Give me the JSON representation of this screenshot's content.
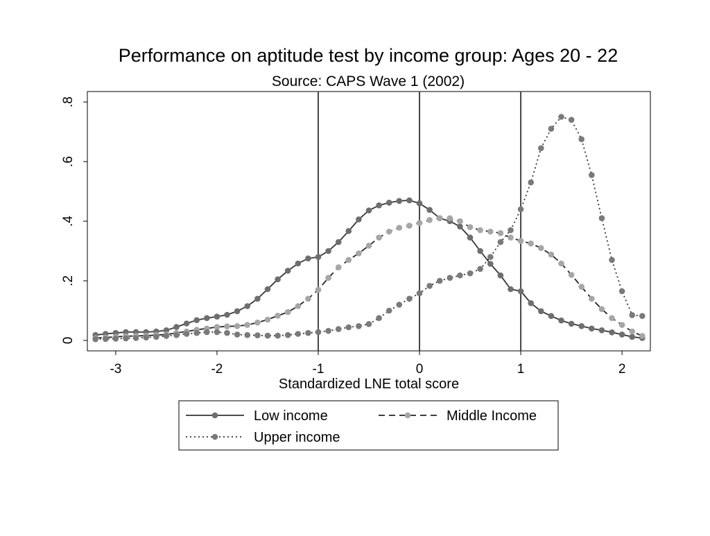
{
  "chart_data": {
    "type": "line",
    "title": "Performance on aptitude test by income group: Ages 20 - 22",
    "subtitle": "Source: CAPS Wave 1 (2002)",
    "xlabel": "Standardized LNE total score",
    "ylabel": "",
    "xlim": [
      -3.28,
      2.28
    ],
    "ylim": [
      -0.035,
      0.835
    ],
    "x_ticks": [
      {
        "value": -3,
        "label": "-3"
      },
      {
        "value": -2,
        "label": "-2"
      },
      {
        "value": -1,
        "label": "-1"
      },
      {
        "value": 0,
        "label": "0"
      },
      {
        "value": 1,
        "label": "1"
      },
      {
        "value": 2,
        "label": "2"
      }
    ],
    "y_ticks": [
      {
        "value": 0,
        "label": "0"
      },
      {
        "value": 0.2,
        "label": ".2"
      },
      {
        "value": 0.4,
        "label": ".4"
      },
      {
        "value": 0.6,
        "label": ".6"
      },
      {
        "value": 0.8,
        "label": ".8"
      }
    ],
    "reference_lines_x": [
      -1,
      0,
      1
    ],
    "grid": false,
    "legend_position": "bottom",
    "series": [
      {
        "name": "Low income",
        "line_style": "solid",
        "line_color": "#333333",
        "marker_color": "#6e6e6e",
        "points": [
          [
            -3.2,
            0.018
          ],
          [
            -3.1,
            0.022
          ],
          [
            -3.0,
            0.025
          ],
          [
            -2.9,
            0.028
          ],
          [
            -2.8,
            0.028
          ],
          [
            -2.7,
            0.028
          ],
          [
            -2.6,
            0.03
          ],
          [
            -2.5,
            0.034
          ],
          [
            -2.4,
            0.045
          ],
          [
            -2.3,
            0.057
          ],
          [
            -2.2,
            0.068
          ],
          [
            -2.1,
            0.075
          ],
          [
            -2.0,
            0.08
          ],
          [
            -1.9,
            0.086
          ],
          [
            -1.8,
            0.098
          ],
          [
            -1.7,
            0.115
          ],
          [
            -1.6,
            0.14
          ],
          [
            -1.5,
            0.172
          ],
          [
            -1.4,
            0.205
          ],
          [
            -1.3,
            0.234
          ],
          [
            -1.2,
            0.258
          ],
          [
            -1.1,
            0.275
          ],
          [
            -1.0,
            0.28
          ],
          [
            -0.9,
            0.3
          ],
          [
            -0.8,
            0.33
          ],
          [
            -0.7,
            0.367
          ],
          [
            -0.6,
            0.406
          ],
          [
            -0.5,
            0.436
          ],
          [
            -0.4,
            0.453
          ],
          [
            -0.3,
            0.462
          ],
          [
            -0.2,
            0.468
          ],
          [
            -0.1,
            0.47
          ],
          [
            0.0,
            0.46
          ],
          [
            0.1,
            0.438
          ],
          [
            0.2,
            0.41
          ],
          [
            0.3,
            0.4
          ],
          [
            0.4,
            0.382
          ],
          [
            0.5,
            0.345
          ],
          [
            0.6,
            0.3
          ],
          [
            0.7,
            0.257
          ],
          [
            0.8,
            0.218
          ],
          [
            0.9,
            0.172
          ],
          [
            1.0,
            0.165
          ],
          [
            1.1,
            0.125
          ],
          [
            1.2,
            0.098
          ],
          [
            1.3,
            0.082
          ],
          [
            1.4,
            0.067
          ],
          [
            1.5,
            0.056
          ],
          [
            1.6,
            0.048
          ],
          [
            1.7,
            0.04
          ],
          [
            1.8,
            0.034
          ],
          [
            1.9,
            0.027
          ],
          [
            2.0,
            0.02
          ],
          [
            2.1,
            0.012
          ],
          [
            2.2,
            0.008
          ]
        ]
      },
      {
        "name": "Middle Income",
        "line_style": "dashed",
        "line_color": "#222222",
        "marker_color": "#a6a6a6",
        "points": [
          [
            -3.2,
            0.008
          ],
          [
            -3.1,
            0.01
          ],
          [
            -3.0,
            0.012
          ],
          [
            -2.9,
            0.014
          ],
          [
            -2.8,
            0.015
          ],
          [
            -2.7,
            0.016
          ],
          [
            -2.6,
            0.018
          ],
          [
            -2.5,
            0.02
          ],
          [
            -2.4,
            0.025
          ],
          [
            -2.3,
            0.03
          ],
          [
            -2.2,
            0.036
          ],
          [
            -2.1,
            0.04
          ],
          [
            -2.0,
            0.045
          ],
          [
            -1.9,
            0.047
          ],
          [
            -1.8,
            0.048
          ],
          [
            -1.7,
            0.052
          ],
          [
            -1.6,
            0.06
          ],
          [
            -1.5,
            0.07
          ],
          [
            -1.4,
            0.083
          ],
          [
            -1.3,
            0.095
          ],
          [
            -1.2,
            0.115
          ],
          [
            -1.1,
            0.14
          ],
          [
            -1.0,
            0.17
          ],
          [
            -0.9,
            0.21
          ],
          [
            -0.8,
            0.245
          ],
          [
            -0.7,
            0.27
          ],
          [
            -0.6,
            0.292
          ],
          [
            -0.5,
            0.318
          ],
          [
            -0.4,
            0.345
          ],
          [
            -0.3,
            0.365
          ],
          [
            -0.2,
            0.378
          ],
          [
            -0.1,
            0.385
          ],
          [
            0.0,
            0.394
          ],
          [
            0.1,
            0.404
          ],
          [
            0.2,
            0.41
          ],
          [
            0.3,
            0.41
          ],
          [
            0.4,
            0.4
          ],
          [
            0.5,
            0.38
          ],
          [
            0.6,
            0.37
          ],
          [
            0.7,
            0.365
          ],
          [
            0.8,
            0.36
          ],
          [
            0.9,
            0.345
          ],
          [
            1.0,
            0.334
          ],
          [
            1.1,
            0.325
          ],
          [
            1.2,
            0.31
          ],
          [
            1.3,
            0.288
          ],
          [
            1.4,
            0.258
          ],
          [
            1.5,
            0.22
          ],
          [
            1.6,
            0.18
          ],
          [
            1.7,
            0.14
          ],
          [
            1.8,
            0.105
          ],
          [
            1.9,
            0.075
          ],
          [
            2.0,
            0.052
          ],
          [
            2.1,
            0.03
          ],
          [
            2.2,
            0.015
          ]
        ]
      },
      {
        "name": "Upper income",
        "line_style": "dotted",
        "line_color": "#333333",
        "marker_color": "#7a7a7a",
        "points": [
          [
            -3.2,
            0.004
          ],
          [
            -3.1,
            0.005
          ],
          [
            -3.0,
            0.006
          ],
          [
            -2.9,
            0.007
          ],
          [
            -2.8,
            0.008
          ],
          [
            -2.7,
            0.01
          ],
          [
            -2.6,
            0.012
          ],
          [
            -2.5,
            0.015
          ],
          [
            -2.4,
            0.018
          ],
          [
            -2.3,
            0.022
          ],
          [
            -2.2,
            0.025
          ],
          [
            -2.1,
            0.028
          ],
          [
            -2.0,
            0.028
          ],
          [
            -1.9,
            0.025
          ],
          [
            -1.8,
            0.02
          ],
          [
            -1.7,
            0.018
          ],
          [
            -1.6,
            0.017
          ],
          [
            -1.5,
            0.016
          ],
          [
            -1.4,
            0.016
          ],
          [
            -1.3,
            0.018
          ],
          [
            -1.2,
            0.022
          ],
          [
            -1.1,
            0.025
          ],
          [
            -1.0,
            0.028
          ],
          [
            -0.9,
            0.032
          ],
          [
            -0.8,
            0.038
          ],
          [
            -0.7,
            0.044
          ],
          [
            -0.6,
            0.048
          ],
          [
            -0.5,
            0.055
          ],
          [
            -0.4,
            0.075
          ],
          [
            -0.3,
            0.1
          ],
          [
            -0.2,
            0.12
          ],
          [
            -0.1,
            0.14
          ],
          [
            0.0,
            0.158
          ],
          [
            0.1,
            0.183
          ],
          [
            0.2,
            0.2
          ],
          [
            0.3,
            0.21
          ],
          [
            0.4,
            0.218
          ],
          [
            0.5,
            0.225
          ],
          [
            0.6,
            0.24
          ],
          [
            0.7,
            0.28
          ],
          [
            0.8,
            0.33
          ],
          [
            0.9,
            0.37
          ],
          [
            1.0,
            0.44
          ],
          [
            1.1,
            0.53
          ],
          [
            1.2,
            0.645
          ],
          [
            1.3,
            0.71
          ],
          [
            1.4,
            0.75
          ],
          [
            1.5,
            0.74
          ],
          [
            1.6,
            0.675
          ],
          [
            1.7,
            0.555
          ],
          [
            1.8,
            0.41
          ],
          [
            1.9,
            0.27
          ],
          [
            2.0,
            0.165
          ],
          [
            2.1,
            0.085
          ],
          [
            2.2,
            0.082
          ]
        ]
      }
    ]
  }
}
